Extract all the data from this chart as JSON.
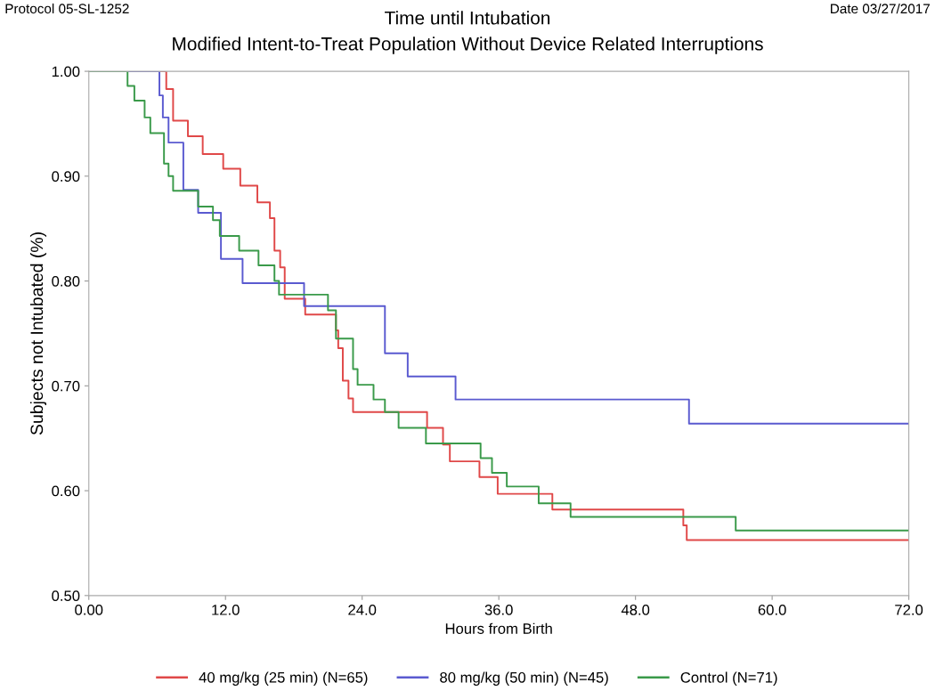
{
  "chart_data": {
    "type": "step",
    "title": "Time until Intubation",
    "subtitle": "Modified Intent-to-Treat Population Without Device Related Interruptions",
    "annotations": [
      "Protocol 05-SL-1252",
      "Date 03/27/2017"
    ],
    "xlabel": "Hours from Birth",
    "ylabel": "Subjects not Intubated (%)",
    "xlim": [
      0,
      72
    ],
    "ylim": [
      0.5,
      1.0
    ],
    "xticks": [
      {
        "value": 0,
        "label": "0.00"
      },
      {
        "value": 12,
        "label": "12.0"
      },
      {
        "value": 24,
        "label": "24.0"
      },
      {
        "value": 36,
        "label": "36.0"
      },
      {
        "value": 48,
        "label": "48.0"
      },
      {
        "value": 60,
        "label": "60.0"
      },
      {
        "value": 72,
        "label": "72.0"
      }
    ],
    "yticks": [
      {
        "value": 0.5,
        "label": "0.50"
      },
      {
        "value": 0.6,
        "label": "0.60"
      },
      {
        "value": 0.7,
        "label": "0.70"
      },
      {
        "value": 0.8,
        "label": "0.80"
      },
      {
        "value": 0.9,
        "label": "0.90"
      },
      {
        "value": 1.0,
        "label": "1.00"
      }
    ],
    "grid": false,
    "legend": "bottom",
    "marker": "none",
    "line_style": "solid",
    "series": [
      {
        "name": "40 mg/kg (25 min) (N=65)",
        "color": "#e04848",
        "x": [
          0,
          6.8,
          7.4,
          8.7,
          10.0,
          11.8,
          13.3,
          14.8,
          15.9,
          16.3,
          16.8,
          17.2,
          19.0,
          21.7,
          21.9,
          22.3,
          22.8,
          23.2,
          29.7,
          31.1,
          31.7,
          34.3,
          35.9,
          40.7,
          52.2,
          52.5,
          72
        ],
        "values": [
          1.0,
          0.983,
          0.953,
          0.938,
          0.921,
          0.907,
          0.891,
          0.875,
          0.86,
          0.829,
          0.813,
          0.783,
          0.768,
          0.753,
          0.736,
          0.705,
          0.688,
          0.675,
          0.66,
          0.644,
          0.628,
          0.613,
          0.597,
          0.582,
          0.567,
          0.553,
          0.553
        ]
      },
      {
        "name": "80 mg/kg (50 min) (N=45)",
        "color": "#5a5ad0",
        "x": [
          0,
          6.2,
          6.5,
          7.0,
          8.3,
          9.6,
          11.6,
          13.5,
          18.9,
          26.0,
          28.0,
          32.2,
          52.7,
          72
        ],
        "values": [
          1.0,
          0.977,
          0.956,
          0.932,
          0.887,
          0.865,
          0.821,
          0.798,
          0.776,
          0.731,
          0.709,
          0.687,
          0.664,
          0.664
        ]
      },
      {
        "name": "Control (N=71)",
        "color": "#3a9a4a",
        "x": [
          0,
          3.4,
          4.0,
          4.9,
          5.4,
          6.6,
          7.0,
          7.4,
          9.6,
          10.9,
          11.5,
          13.2,
          14.9,
          16.3,
          16.7,
          21.0,
          21.7,
          23.2,
          23.6,
          25.0,
          26.0,
          27.2,
          29.6,
          34.4,
          35.4,
          36.7,
          39.5,
          42.3,
          56.8,
          72
        ],
        "values": [
          1.0,
          0.986,
          0.972,
          0.956,
          0.941,
          0.912,
          0.9,
          0.886,
          0.871,
          0.858,
          0.843,
          0.829,
          0.815,
          0.8,
          0.787,
          0.772,
          0.745,
          0.716,
          0.701,
          0.687,
          0.675,
          0.66,
          0.645,
          0.631,
          0.617,
          0.604,
          0.588,
          0.575,
          0.562,
          0.562
        ]
      }
    ]
  }
}
